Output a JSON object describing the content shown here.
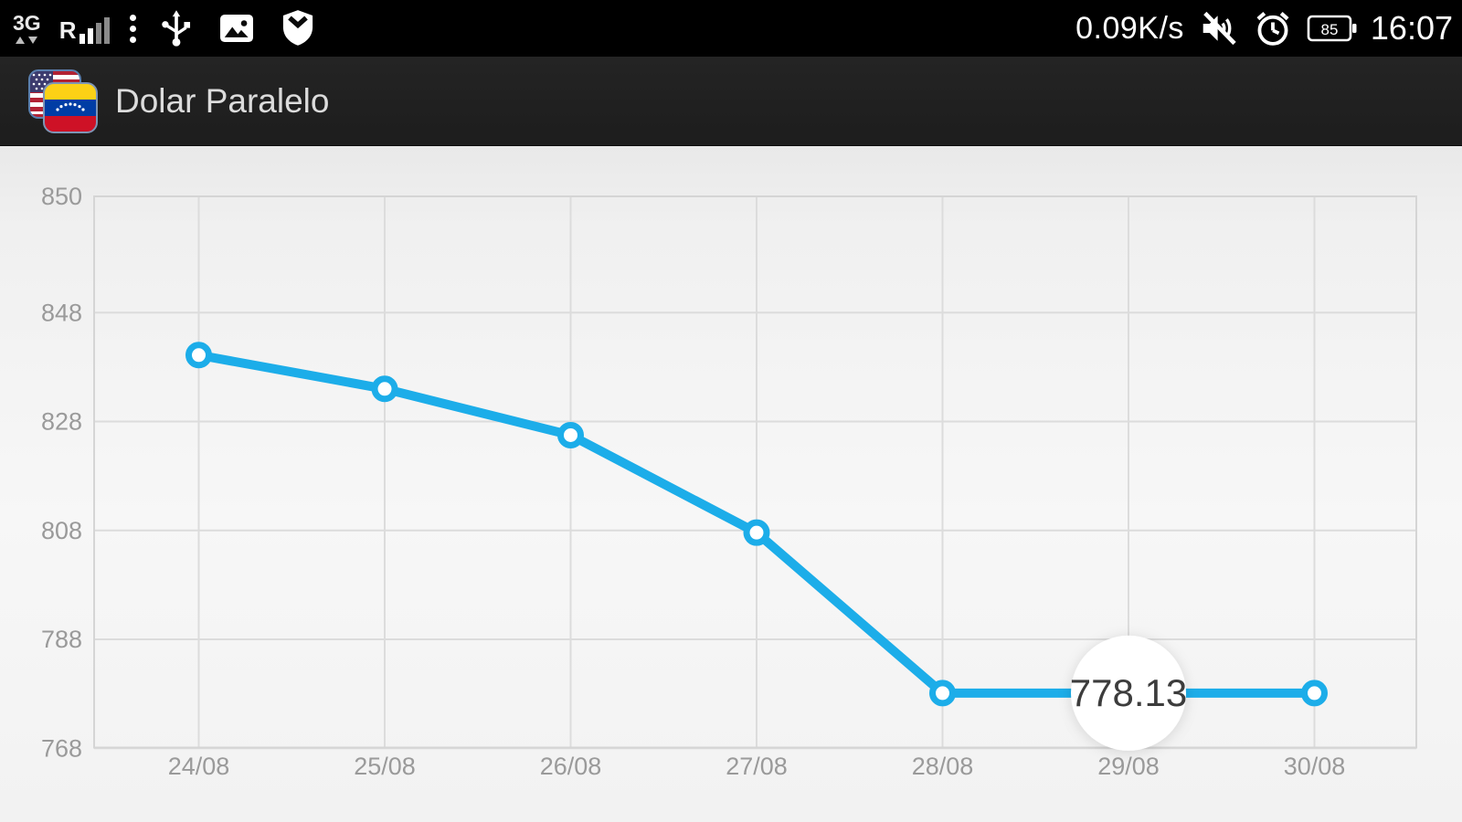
{
  "status_bar": {
    "net_type_label": "3G",
    "roaming_label": "R",
    "network_speed": "0.09K/s",
    "battery_level": "85",
    "time": "16:07"
  },
  "header": {
    "title": "Dolar Paralelo"
  },
  "chart_data": {
    "type": "line",
    "title": "",
    "xlabel": "",
    "ylabel": "",
    "categories": [
      "24/08",
      "25/08",
      "26/08",
      "27/08",
      "28/08",
      "29/08",
      "30/08"
    ],
    "values": [
      840.2,
      834.0,
      825.5,
      807.6,
      778.13,
      778.13,
      778.13
    ],
    "y_ticks": [
      "850",
      "848",
      "828",
      "808",
      "788",
      "768"
    ],
    "ylim": [
      768,
      850
    ],
    "grid": true,
    "legend": "none",
    "highlight": {
      "index": 5,
      "label": "778.13"
    },
    "line_color": "#1cade9",
    "marker_fill": "#ffffff",
    "grid_color": "#dcdcdc",
    "axis_label_color": "#9a9a9a",
    "balloon_text_color": "#3c3c3c"
  }
}
